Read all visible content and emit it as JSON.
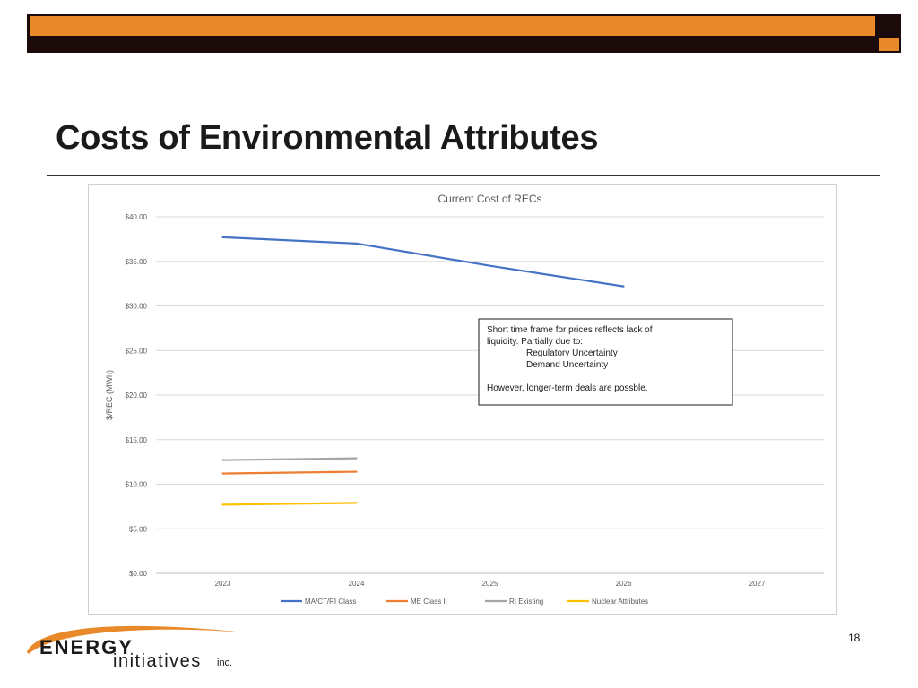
{
  "slide": {
    "title": "Costs of Environmental Attributes",
    "page_number": "18"
  },
  "logo": {
    "word1": "ENERGY",
    "word2": "initiatives",
    "word3": "inc."
  },
  "colors": {
    "header_orange": "#e8892a",
    "header_dark": "#1a0a0a"
  },
  "chart_data": {
    "type": "line",
    "title": "Current Cost of RECs",
    "xlabel": "",
    "ylabel": "$/REC (MWh)",
    "categories": [
      "2023",
      "2024",
      "2025",
      "2026",
      "2027"
    ],
    "ylim": [
      0,
      40
    ],
    "yticks": [
      "$0.00",
      "$5.00",
      "$10.00",
      "$15.00",
      "$20.00",
      "$25.00",
      "$30.00",
      "$35.00",
      "$40.00"
    ],
    "ytick_values": [
      0,
      5,
      10,
      15,
      20,
      25,
      30,
      35,
      40
    ],
    "grid": true,
    "legend_position": "bottom",
    "series": [
      {
        "name": "MA/CT/RI Class I",
        "color": "#4472c4",
        "values": [
          37.7,
          37.0,
          34.5,
          32.2,
          null
        ]
      },
      {
        "name": "ME Class II",
        "color": "#ed7d31",
        "values": [
          11.2,
          11.4,
          null,
          null,
          null
        ]
      },
      {
        "name": "RI Existing",
        "color": "#a5a5a5",
        "values": [
          12.7,
          12.9,
          null,
          null,
          null
        ]
      },
      {
        "name": "Nuclear Attributes",
        "color": "#ffc000",
        "values": [
          7.7,
          7.9,
          null,
          null,
          null
        ]
      }
    ],
    "annotation": {
      "lines": [
        "Short time frame for prices reflects lack of",
        "liquidity.  Partially due to:",
        "Regulatory Uncertainty",
        "Demand Uncertainty",
        "",
        "However, longer-term deals are possble."
      ]
    }
  }
}
